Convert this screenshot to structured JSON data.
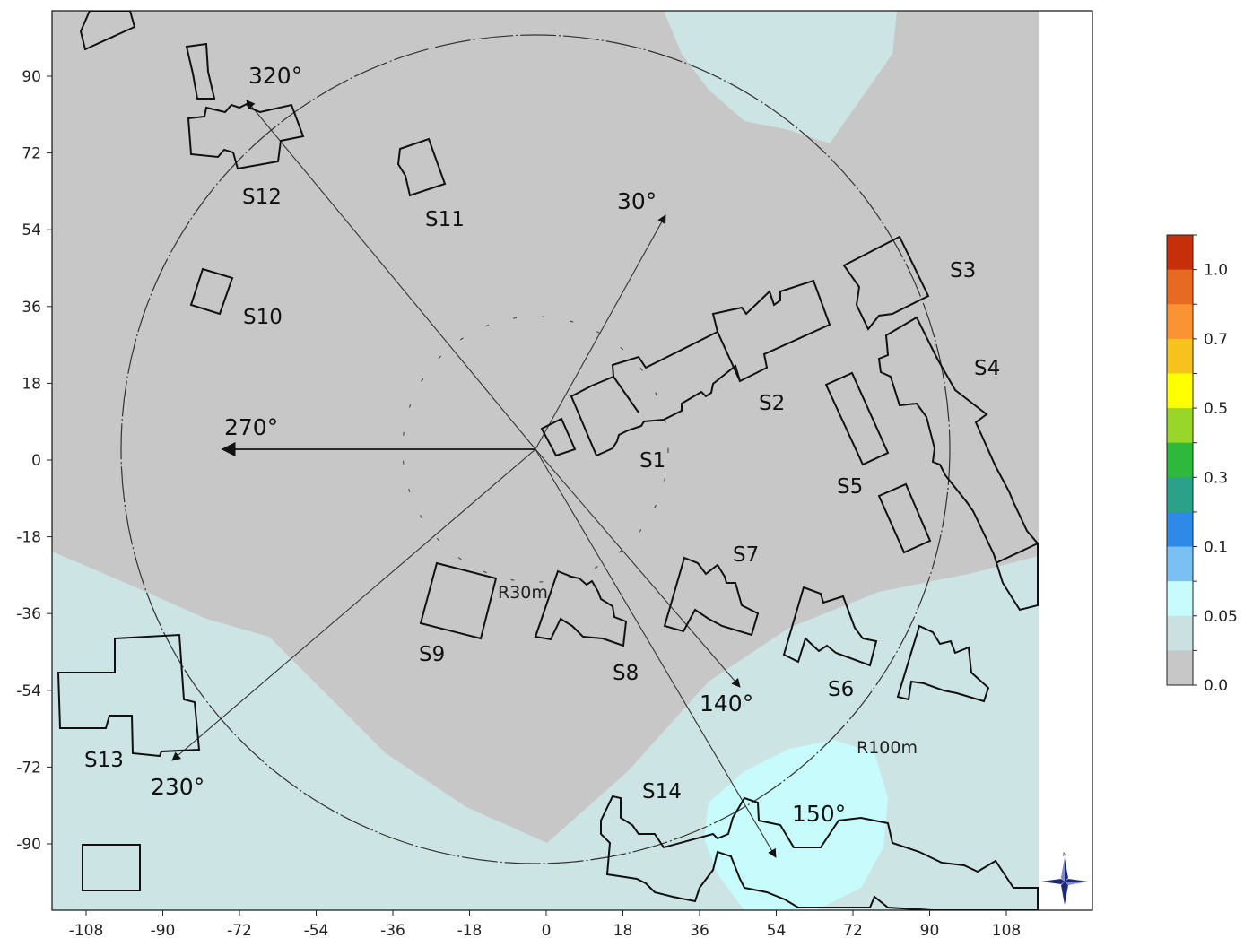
{
  "map": {
    "x_ticks": [
      "-108",
      "-90",
      "-72",
      "-54",
      "-36",
      "-18",
      "0",
      "18",
      "36",
      "54",
      "72",
      "90",
      "108"
    ],
    "y_ticks": [
      "90",
      "72",
      "54",
      "36",
      "18",
      "0",
      "-18",
      "-36",
      "-54",
      "-72",
      "-90"
    ],
    "buildings": [
      "S1",
      "S2",
      "S3",
      "S4",
      "S5",
      "S6",
      "S7",
      "S8",
      "S9",
      "S10",
      "S11",
      "S12",
      "S13",
      "S14"
    ],
    "directions": [
      "30°",
      "140°",
      "150°",
      "230°",
      "270°",
      "320°"
    ],
    "radii": [
      "R30m",
      "R100m"
    ],
    "compass_icon": "compass-rose-icon"
  },
  "legend": {
    "labels": [
      "1.0",
      "0.7",
      "0.5",
      "0.3",
      "0.1",
      "0.05",
      "0.0"
    ],
    "colors": [
      "#c62f0a",
      "#e66a22",
      "#f99334",
      "#f7c21e",
      "#ffff00",
      "#98d62a",
      "#2eb83c",
      "#2aa188",
      "#2e8ae6",
      "#7ac0f2",
      "#c8fbfb",
      "#cbe1e1",
      "#c7c7c7"
    ]
  },
  "colors": {
    "field_gray": "#c7c7c7",
    "field_teal_light": "#cde4e4",
    "field_cyan": "#c8fbfb"
  }
}
